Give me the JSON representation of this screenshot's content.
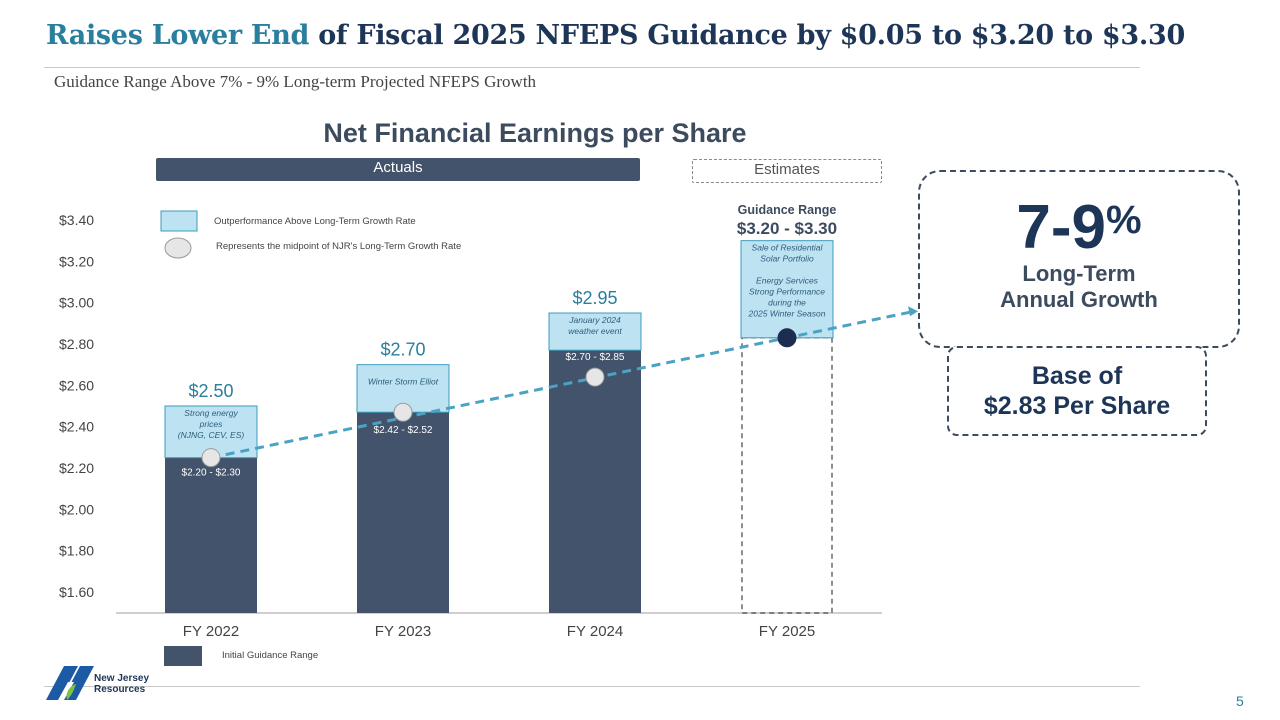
{
  "header": {
    "title_accent": "Raises Lower End",
    "title_rest": " of Fiscal 2025 NFEPS Guidance by $0.05 to $3.20 to $3.30",
    "subtitle": "Guidance Range Above 7% - 9% Long-term Projected NFEPS Growth"
  },
  "chart_data": {
    "type": "bar",
    "title": "Net Financial Earnings per Share",
    "categories": [
      "FY 2022",
      "FY 2023",
      "FY 2024",
      "FY 2025"
    ],
    "ylim": [
      1.6,
      3.4
    ],
    "yticks": [
      1.6,
      1.8,
      2.0,
      2.2,
      2.4,
      2.6,
      2.8,
      3.0,
      3.2,
      3.4
    ],
    "ytick_labels": [
      "$1.60",
      "$1.80",
      "$2.00",
      "$2.20",
      "$2.40",
      "$2.60",
      "$2.80",
      "$3.00",
      "$3.20",
      "$3.40"
    ],
    "period_labels": {
      "actuals": "Actuals",
      "estimates": "Estimates"
    },
    "series": [
      {
        "name": "Initial Guidance Range",
        "values": [
          2.25,
          2.47,
          2.77,
          null
        ]
      },
      {
        "name": "Outperformance Above Long-Term Growth Rate",
        "values": [
          2.5,
          2.7,
          2.95,
          3.3
        ]
      }
    ],
    "estimate_base": [
      null,
      null,
      null,
      2.83
    ],
    "bar_top_labels": [
      "$2.50",
      "$2.70",
      "$2.95",
      ""
    ],
    "guidance_range_labels": [
      "$2.20 - $2.30",
      "$2.42 - $2.52",
      "$2.70 - $2.85",
      ""
    ],
    "outperformance_notes": [
      [
        "Strong energy",
        "prices",
        "(NJNG, CEV, ES)"
      ],
      [
        "Winter Storm Elliot"
      ],
      [
        "January 2024",
        "weather event"
      ],
      [
        "Sale of Residential",
        "Solar Portfolio",
        "",
        "Energy Services",
        "Strong Performance",
        "during the",
        "2025 Winter Season"
      ]
    ],
    "growth_midpoints": [
      2.25,
      2.47,
      2.64,
      2.83
    ],
    "fy2025_guidance": {
      "label": "Guidance Range",
      "value": "$3.20 - $3.30"
    },
    "legend": {
      "outperformance": "Outperformance Above Long-Term Growth Rate",
      "midpoint": "Represents the midpoint of NJR's Long-Term Growth Rate",
      "initial": "Initial Guidance Range"
    },
    "colors": {
      "bar": "#43536b",
      "outperformance_fill": "#bde3f3",
      "outperformance_stroke": "#3d9bbd",
      "trend": "#4aa3c2",
      "midpoint_fill": "#e6e6e6",
      "midpoint_fy2025": "#1d2d4f",
      "accent_text": "#2a7f9e"
    }
  },
  "callout": {
    "growth": "7-9",
    "growth_suffix": "%",
    "line1": "Long-Term",
    "line2": "Annual Growth"
  },
  "base": {
    "line1": "Base of",
    "line2": "$2.83 Per Share"
  },
  "footer": {
    "logo_line1": "New Jersey",
    "logo_line2": "Resources",
    "page_number": "5"
  }
}
